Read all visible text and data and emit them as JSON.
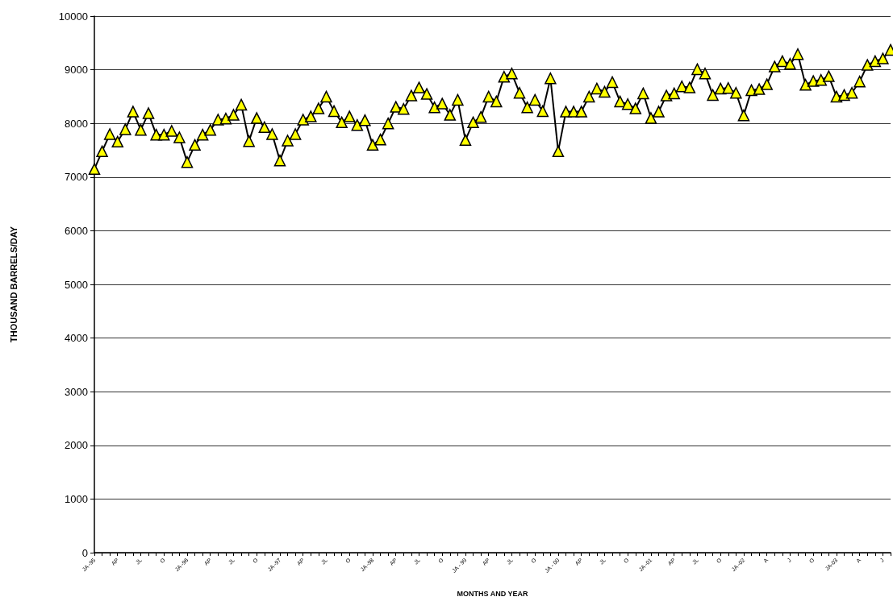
{
  "chart_data": {
    "type": "line",
    "xlabel": "MONTHS AND YEAR",
    "ylabel": "THOUSAND BARRELS/DAY",
    "categories": [
      "JA -95",
      null,
      null,
      "AP",
      null,
      null,
      "JL",
      null,
      null,
      "O",
      null,
      null,
      "JA -96",
      null,
      null,
      "AP",
      null,
      null,
      "JL",
      null,
      null,
      "O",
      null,
      null,
      "JA -97",
      null,
      null,
      "AP",
      null,
      null,
      "JL",
      null,
      null,
      "O",
      null,
      null,
      "JA -98",
      null,
      null,
      "AP",
      null,
      null,
      "JL",
      null,
      null,
      "O",
      null,
      null,
      "JA - 99",
      null,
      null,
      "AP",
      null,
      null,
      "JL",
      null,
      null,
      "O",
      null,
      null,
      "JA - 00",
      null,
      null,
      "AP",
      null,
      null,
      "JL",
      null,
      null,
      "O",
      null,
      null,
      "JA -01",
      null,
      null,
      "AP",
      null,
      null,
      "JL",
      null,
      null,
      "O",
      null,
      null,
      "JA -02",
      null,
      null,
      "A",
      null,
      null,
      "J",
      null,
      null,
      "O",
      null,
      null,
      "JA-03",
      null,
      null,
      "A",
      null,
      null,
      "J",
      null
    ],
    "series": [
      {
        "color": "#ffff00",
        "values": [
          7150,
          7480,
          7800,
          7660,
          7890,
          8220,
          7880,
          8190,
          7790,
          7790,
          7860,
          7740,
          7280,
          7600,
          7790,
          7880,
          8070,
          8090,
          8160,
          8350,
          7670,
          8100,
          7930,
          7800,
          7310,
          7680,
          7800,
          8070,
          8130,
          8280,
          8500,
          8230,
          8020,
          8130,
          7970,
          8060,
          7600,
          7700,
          8000,
          8310,
          8270,
          8520,
          8670,
          8550,
          8300,
          8370,
          8160,
          8440,
          7690,
          8020,
          8120,
          8500,
          8410,
          8870,
          8930,
          8570,
          8300,
          8440,
          8230,
          8840,
          7480,
          8220,
          8220,
          8220,
          8500,
          8650,
          8590,
          8770,
          8410,
          8360,
          8280,
          8560,
          8100,
          8220,
          8520,
          8560,
          8690,
          8670,
          9010,
          8930,
          8530,
          8650,
          8660,
          8570,
          8150,
          8620,
          8640,
          8730,
          9060,
          9160,
          9110,
          9290,
          8720,
          8790,
          8810,
          8880,
          8500,
          8530,
          8570,
          8780,
          9090,
          9160,
          9210,
          9370
        ]
      }
    ],
    "ylim": [
      0,
      10000
    ],
    "yticks": [
      0,
      1000,
      2000,
      3000,
      4000,
      5000,
      6000,
      7000,
      8000,
      9000,
      10000
    ],
    "grid": "y",
    "marker": "triangle",
    "line_style": "solid"
  }
}
